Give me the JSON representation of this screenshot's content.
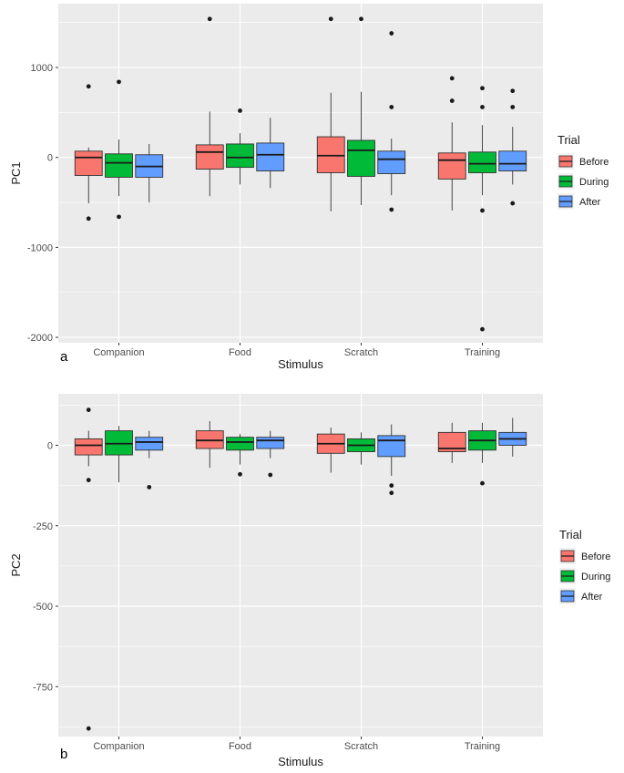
{
  "trials": [
    "Before",
    "During",
    "After"
  ],
  "colors": {
    "Before": "#F8766D",
    "During": "#00BA38",
    "After": "#619CFF",
    "panel_bg": "#EBEBEB",
    "grid": "#FFFFFF"
  },
  "chart_data": [
    {
      "type": "boxplot",
      "panel_label": "a",
      "xlabel": "Stimulus",
      "ylabel": "PC1",
      "ylim": [
        -2060,
        1710
      ],
      "y_ticks": [
        -2000,
        -1000,
        0,
        1000
      ],
      "y_tick_labels": [
        "-2000",
        "-1000",
        "0",
        "1000"
      ],
      "categories": [
        "Companion",
        "Food",
        "Scratch",
        "Training"
      ],
      "legend": {
        "title": "Trial",
        "labels": [
          "Before",
          "During",
          "After"
        ],
        "position": "right"
      },
      "series": [
        {
          "name": "Before",
          "boxes": [
            {
              "low": -510,
              "q1": -200,
              "median": 0,
              "q3": 70,
              "high": 110,
              "outliers": [
                790,
                -680
              ]
            },
            {
              "low": -430,
              "q1": -130,
              "median": 60,
              "q3": 140,
              "high": 510,
              "outliers": [
                1540
              ]
            },
            {
              "low": -600,
              "q1": -170,
              "median": 20,
              "q3": 230,
              "high": 720,
              "outliers": [
                1540
              ]
            },
            {
              "low": -590,
              "q1": -240,
              "median": -30,
              "q3": 50,
              "high": 390,
              "outliers": [
                880,
                630
              ]
            }
          ]
        },
        {
          "name": "During",
          "boxes": [
            {
              "low": -430,
              "q1": -220,
              "median": -60,
              "q3": 40,
              "high": 200,
              "outliers": [
                840,
                -660
              ]
            },
            {
              "low": -300,
              "q1": -110,
              "median": 0,
              "q3": 150,
              "high": 270,
              "outliers": [
                520
              ]
            },
            {
              "low": -530,
              "q1": -210,
              "median": 80,
              "q3": 190,
              "high": 730,
              "outliers": [
                1540
              ]
            },
            {
              "low": -420,
              "q1": -170,
              "median": -70,
              "q3": 60,
              "high": 360,
              "outliers": [
                770,
                560,
                -590,
                -1910
              ]
            }
          ]
        },
        {
          "name": "After",
          "boxes": [
            {
              "low": -500,
              "q1": -220,
              "median": -100,
              "q3": 30,
              "high": 150,
              "outliers": []
            },
            {
              "low": -340,
              "q1": -150,
              "median": 30,
              "q3": 160,
              "high": 440,
              "outliers": []
            },
            {
              "low": -420,
              "q1": -180,
              "median": -20,
              "q3": 70,
              "high": 210,
              "outliers": [
                1380,
                560,
                -580
              ]
            },
            {
              "low": -300,
              "q1": -150,
              "median": -70,
              "q3": 70,
              "high": 340,
              "outliers": [
                740,
                560,
                -510
              ]
            }
          ]
        }
      ]
    },
    {
      "type": "boxplot",
      "panel_label": "b",
      "xlabel": "Stimulus",
      "ylabel": "PC2",
      "ylim": [
        -905,
        160
      ],
      "y_ticks": [
        -750,
        -500,
        -250,
        0
      ],
      "y_tick_labels": [
        "-750",
        "-500",
        "-250",
        "0"
      ],
      "categories": [
        "Companion",
        "Food",
        "Scratch",
        "Training"
      ],
      "legend": {
        "title": "Trial",
        "labels": [
          "Before",
          "During",
          "After"
        ],
        "position": "right"
      },
      "series": [
        {
          "name": "Before",
          "boxes": [
            {
              "low": -65,
              "q1": -30,
              "median": 0,
              "q3": 20,
              "high": 45,
              "outliers": [
                110,
                -108,
                -880
              ]
            },
            {
              "low": -70,
              "q1": -10,
              "median": 15,
              "q3": 45,
              "high": 75,
              "outliers": []
            },
            {
              "low": -85,
              "q1": -25,
              "median": 5,
              "q3": 35,
              "high": 55,
              "outliers": []
            },
            {
              "low": -55,
              "q1": -20,
              "median": -10,
              "q3": 40,
              "high": 70,
              "outliers": []
            }
          ]
        },
        {
          "name": "During",
          "boxes": [
            {
              "low": -115,
              "q1": -30,
              "median": 5,
              "q3": 45,
              "high": 60,
              "outliers": []
            },
            {
              "low": -60,
              "q1": -15,
              "median": 10,
              "q3": 25,
              "high": 35,
              "outliers": [
                -90
              ]
            },
            {
              "low": -60,
              "q1": -20,
              "median": 0,
              "q3": 20,
              "high": 40,
              "outliers": []
            },
            {
              "low": -55,
              "q1": -15,
              "median": 15,
              "q3": 45,
              "high": 70,
              "outliers": [
                -118
              ]
            }
          ]
        },
        {
          "name": "After",
          "boxes": [
            {
              "low": -40,
              "q1": -15,
              "median": 10,
              "q3": 25,
              "high": 45,
              "outliers": [
                -130
              ]
            },
            {
              "low": -40,
              "q1": -10,
              "median": 15,
              "q3": 25,
              "high": 45,
              "outliers": [
                -92
              ]
            },
            {
              "low": -95,
              "q1": -35,
              "median": 15,
              "q3": 30,
              "high": 65,
              "outliers": [
                -125,
                -148
              ]
            },
            {
              "low": -35,
              "q1": 0,
              "median": 20,
              "q3": 40,
              "high": 85,
              "outliers": []
            }
          ]
        }
      ]
    }
  ]
}
